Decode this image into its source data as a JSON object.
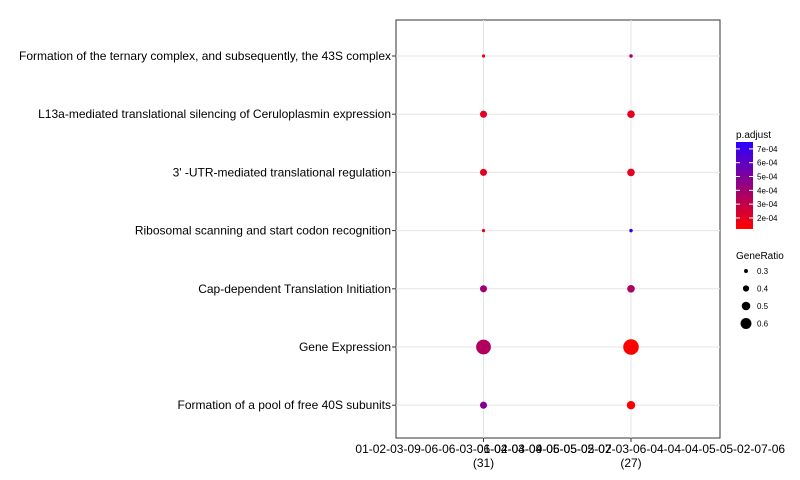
{
  "chart_data": {
    "type": "scatter",
    "title": "",
    "xlabel": "",
    "ylabel": "",
    "x_categories": [
      {
        "label": "01-02-03-09-06-06-03-06-04-04-04-05-05-02-07",
        "count": "(31)"
      },
      {
        "label": "01-02-03-09-06-05-05-02-03-06-04-04-04-05-05-02-07-06",
        "count": "(27)"
      }
    ],
    "terms": [
      "Formation of the ternary complex, and subsequently, the 43S complex",
      "L13a-mediated translational silencing of Ceruloplasmin expression",
      "3' -UTR-mediated translational regulation",
      "Ribosomal scanning and start codon recognition",
      "Cap-dependent Translation Initiation",
      "Gene Expression",
      "Formation of a pool of free 40S subunits"
    ],
    "points": [
      {
        "cluster": 0,
        "term": 0,
        "gene_ratio": 0.25,
        "p_adjust": 0.0002
      },
      {
        "cluster": 0,
        "term": 1,
        "gene_ratio": 0.39,
        "p_adjust": 0.0002
      },
      {
        "cluster": 0,
        "term": 2,
        "gene_ratio": 0.39,
        "p_adjust": 0.0002
      },
      {
        "cluster": 0,
        "term": 3,
        "gene_ratio": 0.25,
        "p_adjust": 0.00022
      },
      {
        "cluster": 0,
        "term": 4,
        "gene_ratio": 0.39,
        "p_adjust": 0.0004
      },
      {
        "cluster": 0,
        "term": 5,
        "gene_ratio": 0.67,
        "p_adjust": 0.00035
      },
      {
        "cluster": 0,
        "term": 6,
        "gene_ratio": 0.39,
        "p_adjust": 0.00048
      },
      {
        "cluster": 1,
        "term": 0,
        "gene_ratio": 0.26,
        "p_adjust": 0.0004
      },
      {
        "cluster": 1,
        "term": 1,
        "gene_ratio": 0.41,
        "p_adjust": 0.0002
      },
      {
        "cluster": 1,
        "term": 2,
        "gene_ratio": 0.41,
        "p_adjust": 0.0002
      },
      {
        "cluster": 1,
        "term": 3,
        "gene_ratio": 0.26,
        "p_adjust": 0.00072
      },
      {
        "cluster": 1,
        "term": 4,
        "gene_ratio": 0.41,
        "p_adjust": 0.00035
      },
      {
        "cluster": 1,
        "term": 5,
        "gene_ratio": 0.7,
        "p_adjust": 0.00012
      },
      {
        "cluster": 1,
        "term": 6,
        "gene_ratio": 0.44,
        "p_adjust": 0.00012
      }
    ],
    "color_legend": {
      "title": "p.adjust",
      "ticks": [
        "7e-04",
        "6e-04",
        "5e-04",
        "4e-04",
        "3e-04",
        "2e-04"
      ],
      "range": [
        0.00012,
        0.00075
      ],
      "low_color": "#ff0000",
      "high_color": "#2a00ff"
    },
    "size_legend": {
      "title": "GeneRatio",
      "values": [
        0.3,
        0.4,
        0.5,
        0.6
      ],
      "labels": [
        "0.3",
        "0.4",
        "0.5",
        "0.6"
      ],
      "range": [
        0.25,
        0.7
      ]
    },
    "grid": true,
    "legend_position": "right"
  }
}
